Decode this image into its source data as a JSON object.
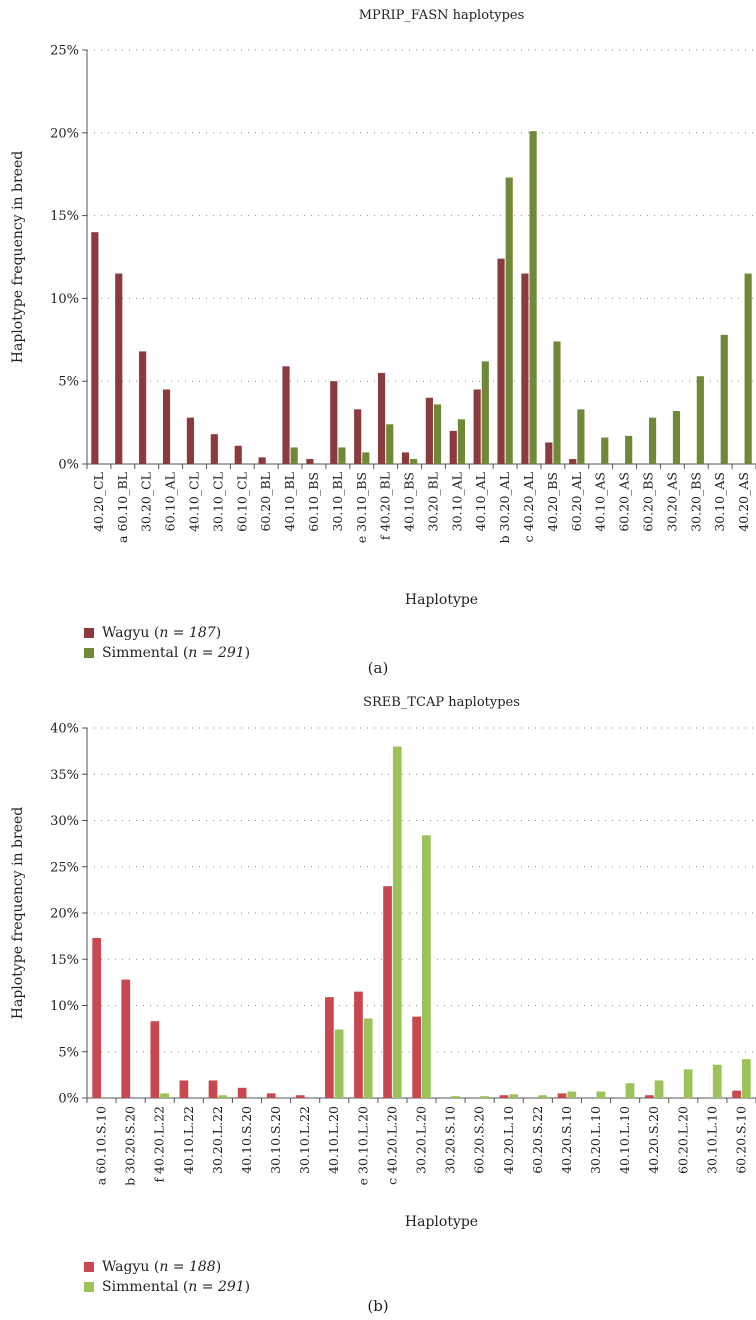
{
  "chart_data": [
    {
      "type": "bar",
      "title": "MPRIP_FASN haplotypes",
      "xlabel": "Haplotype",
      "ylabel": "Haplotype frequency in breed",
      "ylim": [
        0,
        25
      ],
      "yticks": [
        "0%",
        "5%",
        "10%",
        "15%",
        "20%",
        "25%"
      ],
      "grid": "horizontal dotted",
      "legend_position": "bottom-left",
      "categories": [
        "40.20_CL",
        "a 60.10_BL",
        "30.20_CL",
        "60.10_AL",
        "40.10_CL",
        "30.10_CL",
        "60.10_CL",
        "60.20_BL",
        "40.10_BL",
        "60.10_BS",
        "30.10_BL",
        "e 30.10_BS",
        "f 40.20_BL",
        "40.10_BS",
        "30.20_BL",
        "30.10_AL",
        "40.10_AL",
        "b 30.20_AL",
        "c 40.20_AL",
        "40.20_BS",
        "60.20_AL",
        "40.10_AS",
        "60.20_AS",
        "60.20_BS",
        "30.20_AS",
        "30.20_BS",
        "30.10_AS",
        "40.20_AS"
      ],
      "series": [
        {
          "name": "Wagyu",
          "n_label": "n = 187",
          "color": "#8b3a3e",
          "values": [
            14.0,
            11.5,
            6.8,
            4.5,
            2.8,
            1.8,
            1.1,
            0.4,
            5.9,
            0.3,
            5.0,
            3.3,
            5.5,
            0.7,
            4.0,
            2.0,
            4.5,
            12.4,
            11.5,
            1.3,
            0.3,
            0,
            0,
            0,
            0,
            0,
            0,
            0
          ]
        },
        {
          "name": "Simmental",
          "n_label": "n = 291",
          "color": "#6e8a38",
          "values": [
            0,
            0,
            0,
            0,
            0,
            0,
            0,
            0,
            1.0,
            0,
            1.0,
            0.7,
            2.4,
            0.3,
            3.6,
            2.7,
            6.2,
            17.3,
            20.1,
            7.4,
            3.3,
            1.6,
            1.7,
            2.8,
            3.2,
            5.3,
            7.8,
            11.5
          ]
        }
      ],
      "panel_label": "(a)"
    },
    {
      "type": "bar",
      "title": "SREB_TCAP haplotypes",
      "xlabel": "Haplotype",
      "ylabel": "Haplotype frequency in breed",
      "ylim": [
        0,
        40
      ],
      "yticks": [
        "0%",
        "5%",
        "10%",
        "15%",
        "20%",
        "25%",
        "30%",
        "35%",
        "40%"
      ],
      "grid": "horizontal dotted",
      "legend_position": "bottom-left",
      "categories": [
        "a 60.10.S.10",
        "b 30.20.S.20",
        "f 40.20.L.22",
        "40.10.L.22",
        "30.20.L.22",
        "40.10.S.20",
        "30.10.S.20",
        "30.10.L.22",
        "40.10.L.20",
        "e 30.10.L.20",
        "c 40.20.L.20",
        "30.20.L.20",
        "30.20.S.10",
        "60.20.S.20",
        "40.20.L.10",
        "60.20.S.22",
        "40.20.S.10",
        "30.20.L.10",
        "40.10.L.10",
        "40.20.S.20",
        "60.20.L.20",
        "30.10.L.10",
        "60.20.S.10"
      ],
      "series": [
        {
          "name": "Wagyu",
          "n_label": "n = 188",
          "color": "#c9484f",
          "values": [
            17.3,
            12.8,
            8.3,
            1.9,
            1.9,
            1.1,
            0.5,
            0.3,
            10.9,
            11.5,
            22.9,
            8.8,
            0,
            0,
            0.3,
            0,
            0.5,
            0,
            0,
            0.3,
            0,
            0,
            0.8
          ]
        },
        {
          "name": "Simmental",
          "n_label": "n = 291",
          "color": "#9cc25a",
          "values": [
            0,
            0,
            0.5,
            0,
            0.3,
            0,
            0,
            0,
            7.4,
            8.6,
            38.0,
            28.4,
            0.2,
            0.2,
            0.4,
            0.3,
            0.7,
            0.7,
            1.6,
            1.9,
            3.1,
            3.6,
            4.2
          ]
        }
      ],
      "panel_label": "(b)"
    }
  ]
}
